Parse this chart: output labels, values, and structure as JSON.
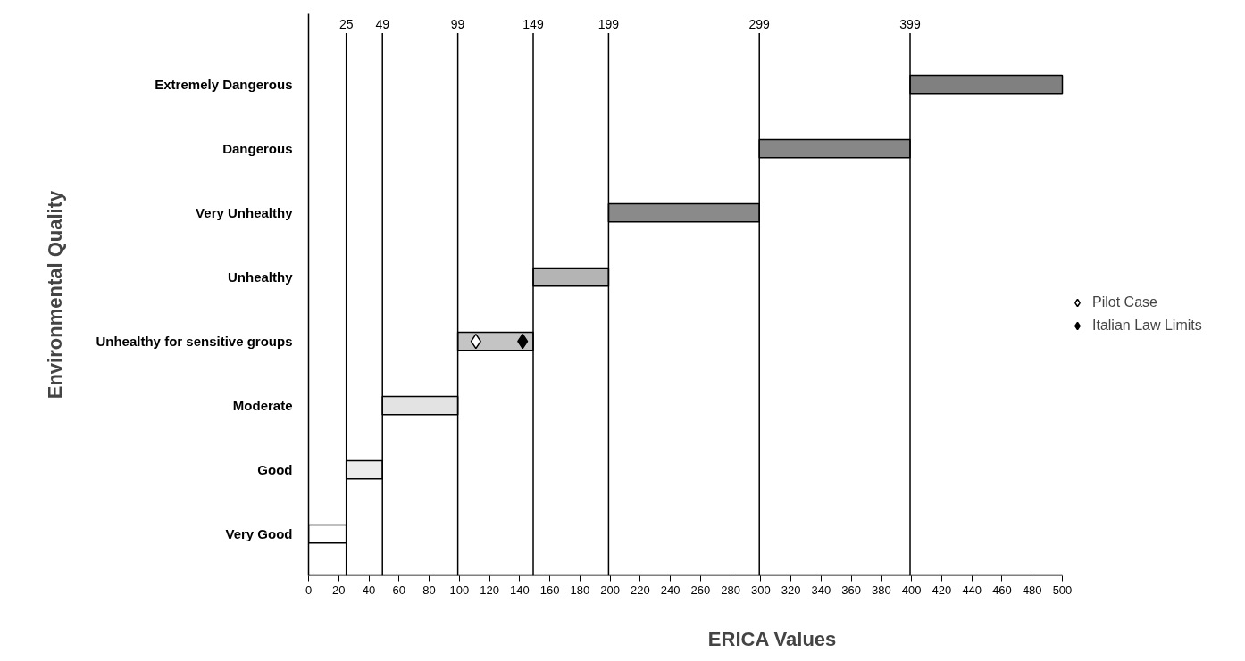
{
  "chart_data": {
    "type": "bar",
    "orientation": "horizontal",
    "xlabel": "ERICA Values",
    "ylabel": "Environmental Quality",
    "categories": [
      "Extremely Dangerous",
      "Dangerous",
      "Very Unhealthy",
      "Unhealthy",
      "Unhealthy for sensitive groups",
      "Moderate",
      "Good",
      "Very Good"
    ],
    "series": [
      {
        "values": [
          101,
          100,
          100,
          50,
          50,
          50,
          24,
          25
        ],
        "base": [
          399,
          299,
          199,
          149,
          99,
          49,
          25,
          0
        ],
        "colors": [
          "#808080",
          "#878787",
          "#8a8a8a",
          "#b4b4b4",
          "#c4c4c4",
          "#e3e3e3",
          "#ececec",
          "#ffffff"
        ]
      },
      {
        "type": "scatter",
        "name": "Pilot Case",
        "x": [
          "Unhealthy for sensitive groups"
        ],
        "values": [
          111
        ],
        "color": "#ffffff",
        "marker": "diamond"
      },
      {
        "type": "scatter",
        "name": "Italian Law Limits",
        "x": [
          "Unhealthy for sensitive groups"
        ],
        "values": [
          142
        ],
        "color": "#000000",
        "marker": "diamond"
      }
    ],
    "xlim": [
      0,
      500
    ],
    "xticks": [
      0,
      20,
      40,
      60,
      80,
      100,
      120,
      140,
      160,
      180,
      200,
      220,
      240,
      260,
      280,
      300,
      320,
      340,
      360,
      380,
      400,
      420,
      440,
      460,
      480,
      500
    ],
    "ref_lines": [
      {
        "axis": "x",
        "value": 25,
        "label": "25"
      },
      {
        "axis": "x",
        "value": 49,
        "label": "49"
      },
      {
        "axis": "x",
        "value": 99,
        "label": "99"
      },
      {
        "axis": "x",
        "value": 149,
        "label": "149"
      },
      {
        "axis": "x",
        "value": 199,
        "label": "199"
      },
      {
        "axis": "x",
        "value": 299,
        "label": "299"
      },
      {
        "axis": "x",
        "value": 399,
        "label": "399"
      }
    ],
    "grid": false,
    "legend": "right"
  }
}
